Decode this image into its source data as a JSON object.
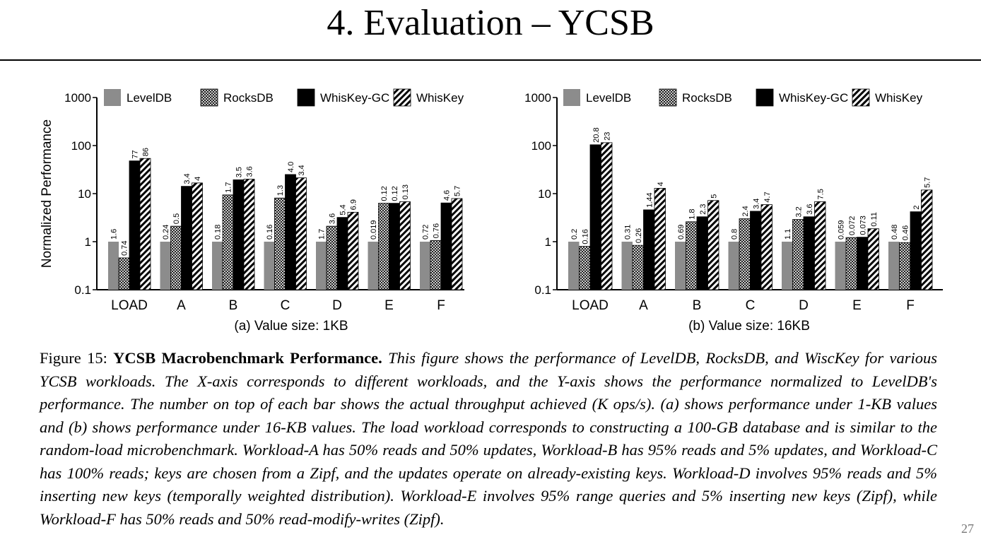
{
  "slide": {
    "title": "4. Evaluation – YCSB",
    "page_number": "27"
  },
  "legend": [
    "LevelDB",
    "RocksDB",
    "WhisKey-GC",
    "WhisKey"
  ],
  "caption": {
    "label": "Figure 15:",
    "bold": "YCSB Macrobenchmark Performance.",
    "text": "This figure shows the performance of LevelDB, RocksDB, and WiscKey for various YCSB workloads. The X-axis corresponds to different workloads, and the Y-axis shows the performance normalized to LevelDB's performance. The number on top of each bar shows the actual throughput achieved (K ops/s). (a) shows performance under 1-KB values and (b) shows performance under 16-KB values. The load workload corresponds to constructing a 100-GB database and is similar to the random-load microbenchmark. Workload-A has 50% reads and 50% updates, Workload-B has 95% reads and 5% updates, and Workload-C has 100% reads; keys are chosen from a Zipf, and the updates operate on already-existing keys. Workload-D involves 95% reads and 5% inserting new keys (temporally weighted distribution). Workload-E involves 95% range queries and 5% inserting new keys (Zipf), while Workload-F has 50% reads and 50% read-modify-writes (Zipf)."
  },
  "chart_data": [
    {
      "type": "bar",
      "subtitle": "(a) Value size: 1KB",
      "ylabel": "Normalized Performance",
      "yscale": "log",
      "ylim": [
        0.1,
        1000
      ],
      "yticks": [
        "0.1",
        "1",
        "10",
        "100",
        "1000"
      ],
      "categories": [
        "LOAD",
        "A",
        "B",
        "C",
        "D",
        "E",
        "F"
      ],
      "series": [
        {
          "name": "LevelDB",
          "values": [
            1,
            1,
            1,
            1,
            1,
            1,
            1
          ],
          "labels": [
            "1.6",
            "0.24",
            "0.18",
            "0.16",
            "1.7",
            "0.019",
            "0.72"
          ]
        },
        {
          "name": "RocksDB",
          "values": [
            0.46,
            2.1,
            9.4,
            8.1,
            2.1,
            6.3,
            1.06
          ],
          "labels": [
            "0.74",
            "0.5",
            "1.7",
            "1.3",
            "3.6",
            "0.12",
            "0.76"
          ]
        },
        {
          "name": "WhisKey-GC",
          "values": [
            48,
            14.2,
            19.4,
            25,
            3.2,
            6.3,
            6.4
          ],
          "labels": [
            "77",
            "3.4",
            "3.5",
            "4.0",
            "5.4",
            "0.12",
            "4.6"
          ]
        },
        {
          "name": "WhisKey",
          "values": [
            54,
            16.7,
            20,
            21.3,
            4.1,
            6.8,
            7.9
          ],
          "labels": [
            "86",
            "4",
            "3.6",
            "3.4",
            "6.9",
            "0.13",
            "5.7"
          ]
        }
      ]
    },
    {
      "type": "bar",
      "subtitle": "(b) Value size: 16KB",
      "ylabel": "",
      "yscale": "log",
      "ylim": [
        0.1,
        1000
      ],
      "yticks": [
        "0.1",
        "1",
        "10",
        "100",
        "1000"
      ],
      "categories": [
        "LOAD",
        "A",
        "B",
        "C",
        "D",
        "E",
        "F"
      ],
      "series": [
        {
          "name": "LevelDB",
          "values": [
            1,
            1,
            1,
            1,
            1,
            1,
            1
          ],
          "labels": [
            "0.2",
            "0.31",
            "0.69",
            "0.8",
            "1.1",
            "0.059",
            "0.48"
          ]
        },
        {
          "name": "RocksDB",
          "values": [
            0.8,
            0.84,
            2.6,
            3.0,
            2.9,
            1.22,
            0.96
          ],
          "labels": [
            "0.16",
            "0.26",
            "1.8",
            "2.4",
            "3.2",
            "0.072",
            "0.46"
          ]
        },
        {
          "name": "WhisKey-GC",
          "values": [
            104,
            4.6,
            3.3,
            4.3,
            3.3,
            1.24,
            4.2
          ],
          "labels": [
            "20.8",
            "1.44",
            "2.3",
            "3.4",
            "3.6",
            "0.073",
            "2"
          ]
        },
        {
          "name": "WhisKey",
          "values": [
            115,
            12.9,
            7.2,
            5.9,
            6.8,
            1.86,
            11.9
          ],
          "labels": [
            "23",
            "4",
            "5",
            "4.7",
            "7.5",
            "0.11",
            "5.7"
          ]
        }
      ]
    }
  ]
}
